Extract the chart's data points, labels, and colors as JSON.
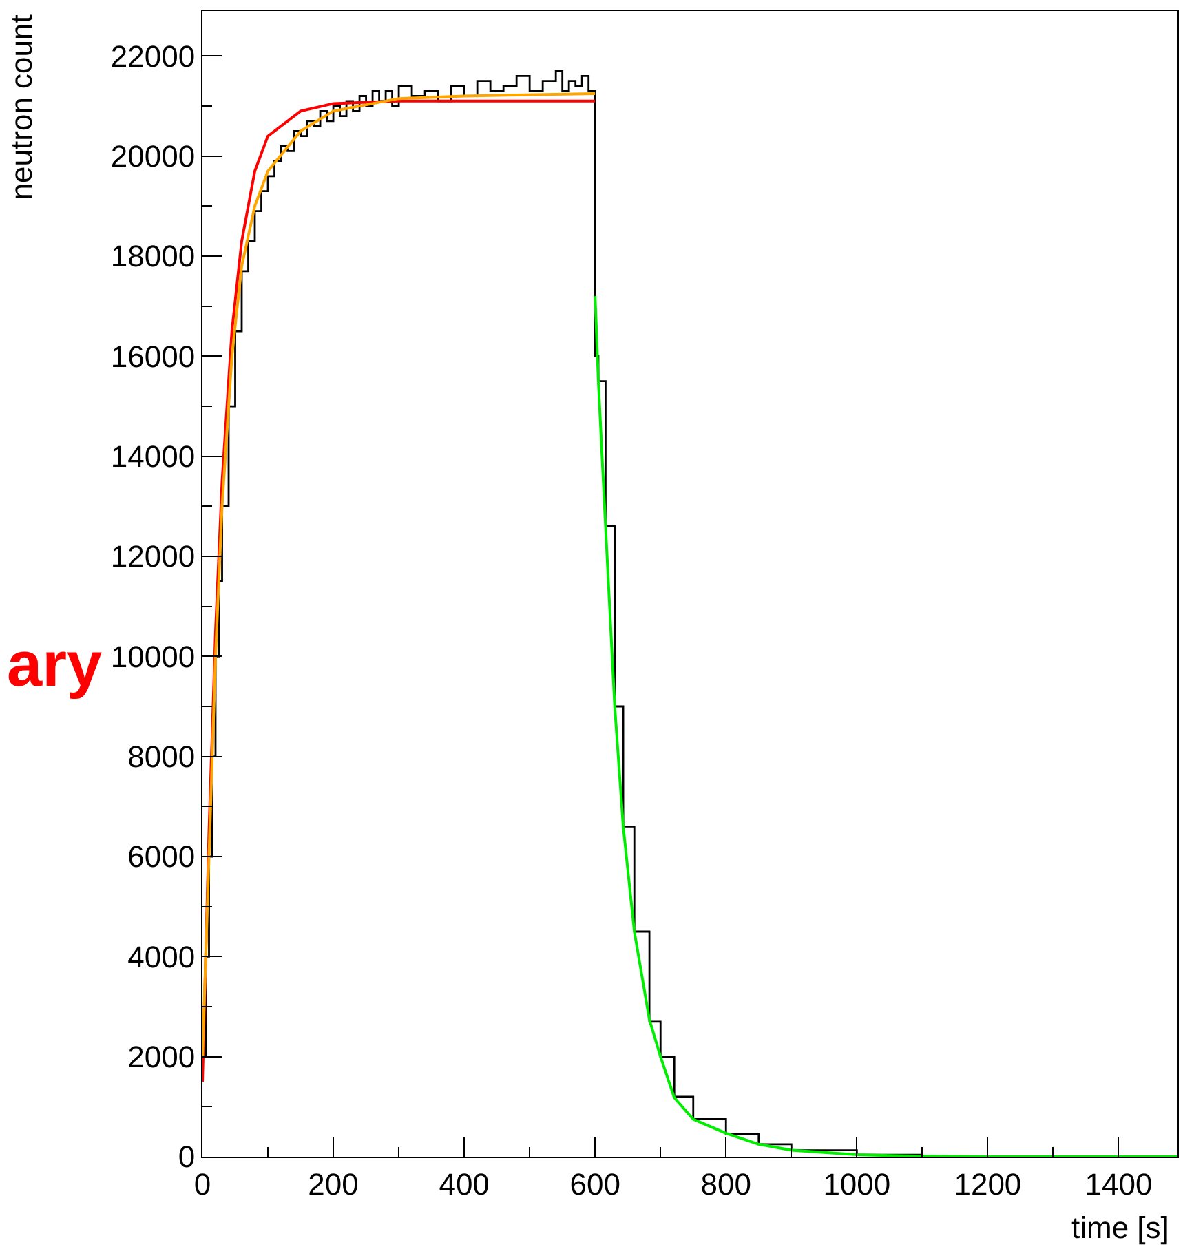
{
  "chart_data": {
    "type": "line",
    "xlabel": "time [s]",
    "ylabel": "neutron count",
    "xlim": [
      0,
      1490
    ],
    "xticks": [
      0,
      200,
      400,
      600,
      800,
      1000,
      1200,
      1400
    ],
    "ylim": [
      0,
      22900
    ],
    "yticks": [
      0,
      2000,
      4000,
      6000,
      8000,
      10000,
      12000,
      14000,
      16000,
      18000,
      20000,
      22000
    ],
    "grid": false,
    "marker": "none",
    "line_style": "solid",
    "annotations": [
      "ary"
    ],
    "series": [
      {
        "type": "step",
        "color": "#000000",
        "x": [
          0,
          5,
          10,
          15,
          20,
          25,
          30,
          40,
          50,
          60,
          70,
          80,
          90,
          100,
          110,
          120,
          130,
          140,
          150,
          160,
          170,
          180,
          190,
          200,
          210,
          220,
          230,
          240,
          250,
          260,
          270,
          280,
          290,
          300,
          320,
          340,
          360,
          380,
          400,
          420,
          440,
          460,
          480,
          500,
          520,
          540,
          550,
          560,
          570,
          580,
          590,
          600,
          605,
          616,
          630,
          643,
          660,
          683,
          700,
          721,
          750,
          800,
          850,
          900,
          1000,
          1100,
          1200,
          1490
        ],
        "values": [
          2000,
          4000,
          6000,
          8000,
          10000,
          11500,
          13000,
          15000,
          16500,
          17700,
          18300,
          18900,
          19300,
          19600,
          19900,
          20200,
          20100,
          20500,
          20400,
          20700,
          20600,
          20900,
          20700,
          21000,
          20800,
          21100,
          20900,
          21200,
          21000,
          21300,
          21100,
          21300,
          21000,
          21400,
          21200,
          21300,
          21100,
          21400,
          21200,
          21500,
          21300,
          21400,
          21600,
          21300,
          21500,
          21700,
          21300,
          21500,
          21400,
          21600,
          21300,
          16000,
          15500,
          12600,
          9000,
          6600,
          4500,
          2700,
          2000,
          1200,
          750,
          450,
          250,
          130,
          40,
          10,
          0,
          0
        ]
      },
      {
        "color": "#ff0000",
        "x": [
          0,
          10,
          20,
          30,
          45,
          60,
          80,
          100,
          150,
          200,
          300,
          600
        ],
        "values": [
          1500,
          6500,
          10500,
          13500,
          16500,
          18300,
          19700,
          20400,
          20900,
          21050,
          21100,
          21100
        ]
      },
      {
        "color": "#ffa500",
        "x": [
          0,
          10,
          20,
          30,
          45,
          60,
          80,
          100,
          150,
          200,
          300,
          400,
          600
        ],
        "values": [
          2000,
          6000,
          10000,
          13000,
          16000,
          17800,
          19000,
          19700,
          20500,
          20900,
          21150,
          21200,
          21250
        ]
      },
      {
        "color": "#00ee00",
        "x": [
          600,
          605,
          616,
          630,
          643,
          660,
          683,
          700,
          721,
          750,
          800,
          850,
          900,
          1000,
          1100,
          1200,
          1490
        ],
        "values": [
          17200,
          15500,
          12600,
          9000,
          6600,
          4500,
          2740,
          2000,
          1180,
          750,
          470,
          250,
          130,
          40,
          10,
          0,
          0
        ]
      }
    ]
  }
}
